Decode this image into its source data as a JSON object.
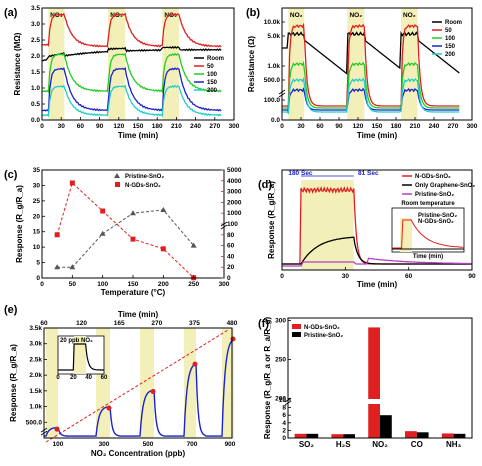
{
  "colors": {
    "room": "#000000",
    "c50": "#e02020",
    "c100": "#22cc22",
    "c150": "#1a22cc",
    "c200": "#22cccc",
    "gas_band": "#f2f0b8",
    "pristine": "#555555",
    "ngds": "#e02020",
    "graphene": "#000000",
    "purple": "#b040c0"
  },
  "chart_data": [
    {
      "panel": "(a)",
      "type": "line",
      "gas_label": "NO₂",
      "gas_labels": [
        "NO₂",
        "NO₂",
        "NO₂"
      ],
      "gas_windows": [
        [
          10,
          35
        ],
        [
          103,
          130
        ],
        [
          188,
          214
        ]
      ],
      "xlabel": "Time (min)",
      "ylabel": "Resistance (MΩ)",
      "xlim": [
        0,
        300
      ],
      "ylim": [
        0,
        3.5
      ],
      "xticks": [
        "0",
        "30",
        "60",
        "90",
        "120",
        "150",
        "180",
        "210",
        "240",
        "270",
        "300"
      ],
      "yticks": [
        "0.0",
        "0.5",
        "1.0",
        "1.5",
        "2.0",
        "2.5",
        "3.0",
        "3.5"
      ],
      "series": [
        {
          "name": "Room",
          "color": "#000000",
          "base": 1.85,
          "peak": 2.5,
          "tail": 2.25
        },
        {
          "name": "50",
          "color": "#e02020",
          "base": 2.35,
          "peak": 3.3,
          "tail": 2.3
        },
        {
          "name": "100",
          "color": "#22cc22",
          "base": 0.9,
          "peak": 2.05,
          "tail": 0.9
        },
        {
          "name": "150",
          "color": "#1a22cc",
          "base": 0.3,
          "peak": 1.6,
          "tail": 0.3
        },
        {
          "name": "200",
          "color": "#22cccc",
          "base": 0.15,
          "peak": 1.05,
          "tail": 0.15
        }
      ]
    },
    {
      "panel": "(b)",
      "type": "line",
      "gas_label": "NO₂",
      "gas_labels": [
        "NO₂",
        "NO₂",
        "NO₂"
      ],
      "gas_windows": [
        [
          10,
          35
        ],
        [
          103,
          130
        ],
        [
          188,
          214
        ]
      ],
      "xlabel": "Time (min)",
      "ylabel": "Resistance (Ω)",
      "xlim": [
        0,
        300
      ],
      "xticks": [
        "0",
        "30",
        "60",
        "90",
        "120",
        "150",
        "180",
        "210",
        "240",
        "270",
        "300"
      ],
      "yticks_upper": [
        "500.0",
        "1.0k",
        "5.0k",
        "10.0k"
      ],
      "yticks_lower": [
        "0.0",
        "100.0"
      ],
      "legend": [
        "Room",
        "50",
        "100",
        "150",
        "200"
      ]
    },
    {
      "panel": "(c)",
      "type": "line",
      "xlabel": "Temperature (°C)",
      "ylabel": "Response (R_g/R_a)",
      "x": [
        25,
        50,
        100,
        150,
        200,
        250
      ],
      "xticks": [
        "0",
        "50",
        "100",
        "150",
        "200",
        "250",
        "300"
      ],
      "yticks_left": [
        "0",
        "5",
        "10",
        "15",
        "20",
        "25",
        "30",
        "35"
      ],
      "yticks_right": [
        "0",
        "20",
        "40",
        "60",
        "80",
        "100",
        "1000",
        "2000",
        "3000",
        "4000",
        "5000"
      ],
      "series": [
        {
          "name": "Pristine-SnO₂",
          "values": [
            1,
            1,
            4.1,
            6,
            6.3,
            3
          ],
          "axis": "left"
        },
        {
          "name": "N-GDs-SnO₂",
          "values": [
            2000,
            4400,
            3100,
            1800,
            1350,
            10
          ],
          "axis": "right"
        }
      ],
      "ylim_left": [
        0,
        10
      ],
      "ylim_right_display": [
        0,
        5000
      ]
    },
    {
      "panel": "(d)",
      "type": "line",
      "xlabel": "Time (min)",
      "ylabel": "Response (R_g/R_a)",
      "xlim": [
        0,
        90
      ],
      "xticks": [
        "0",
        "30",
        "60",
        "90"
      ],
      "annotations": [
        "180 Sec",
        "81 Sec"
      ],
      "legend": [
        "N-GDs-SnO₂",
        "Only Graphene-SnO₂",
        "Pristine-SnO₂"
      ],
      "inset": {
        "title": "Room temperature",
        "xlabel": "Time (min)",
        "ylabel": "Response (R_g/R_a)",
        "legend": [
          "Pristine-SnO₂",
          "N-GDs-SnO₂"
        ]
      }
    },
    {
      "panel": "(e)",
      "type": "line",
      "xlabel": "NO₂ Concentration (ppb)",
      "ylabel": "Response (R_g/R_a)",
      "top_label": "Time (min)",
      "top_ticks": [
        "0",
        "60",
        "120",
        "180",
        "240",
        "300",
        "360",
        "420",
        "480"
      ],
      "top_tick_labels_shown": [
        "60",
        "120",
        "165",
        "270",
        "375",
        "480"
      ],
      "bottom_ticks": [
        "100",
        "300",
        "500",
        "700",
        "900"
      ],
      "yticks": [
        "500.0",
        "1.0k",
        "1.5k",
        "2.0k",
        "2.5k",
        "3.0k",
        "3.5k"
      ],
      "ylim": [
        0,
        3500
      ],
      "concentrations": [
        100,
        300,
        500,
        700,
        900
      ],
      "responses": [
        290,
        950,
        1480,
        2350,
        3150
      ],
      "inset": {
        "label": "20 ppb NO₂",
        "ylabel": "Response (R_g/R_a)",
        "xlabel": "Time (min)",
        "xticks": [
          "0",
          "20",
          "40",
          "60"
        ]
      }
    },
    {
      "panel": "(f)",
      "type": "bar",
      "categories": [
        "SO₂",
        "H₂S",
        "NO₂",
        "CO",
        "NH₃"
      ],
      "series": [
        {
          "name": "N-GDs-SnO₂",
          "color": "#e02020",
          "values": [
            1.1,
            1.0,
            291,
            1.8,
            1.2
          ]
        },
        {
          "name": "Pristine-SnO₂",
          "color": "#000000",
          "values": [
            1.1,
            1.0,
            6.0,
            1.5,
            1.1
          ]
        }
      ],
      "ylabel": "Response (R_g/R_a or R_a/R_g)",
      "yticks": [
        "0",
        "2",
        "4",
        "6",
        "8",
        "10",
        "200",
        "250",
        "300"
      ],
      "ylim_display": [
        0,
        300
      ]
    }
  ]
}
